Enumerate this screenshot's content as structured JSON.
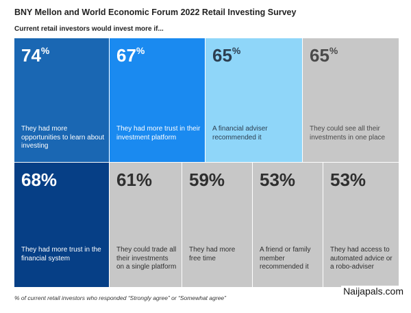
{
  "chart_data": {
    "type": "table",
    "title": "BNY Mellon and World Economic Forum 2022 Retail Investing Survey",
    "subtitle": "Current retail investors would invest more if...",
    "footnote": "% of current retail investors who responded “Strongly agree” or “Somewhat agree”",
    "unit": "%",
    "rows": [
      [
        {
          "value": 74,
          "label": "They had more opportunities to learn about investing",
          "color": "#1a67b3",
          "text_color": "#ffffff"
        },
        {
          "value": 67,
          "label": "They had more trust in their investment platform",
          "color": "#1a8af0",
          "text_color": "#ffffff"
        },
        {
          "value": 65,
          "label": "A financial adviser recommended it",
          "color": "#8fd6f9",
          "text_color": "#2c3e50"
        },
        {
          "value": 65,
          "label": "They could see all their investments in one place",
          "color": "#c7c7c7",
          "text_color": "#4a4a4a"
        }
      ],
      [
        {
          "value": 68,
          "label": "They had more trust in the financial system",
          "color": "#063f86",
          "text_color": "#ffffff"
        },
        {
          "value": 61,
          "label": "They could trade all their investments on a single platform",
          "color": "#c7c7c7",
          "text_color": "#2f2f2f"
        },
        {
          "value": 59,
          "label": "They had more free time",
          "color": "#c7c7c7",
          "text_color": "#2f2f2f"
        },
        {
          "value": 53,
          "label": "A friend or family member recommended it",
          "color": "#c7c7c7",
          "text_color": "#2f2f2f"
        },
        {
          "value": 53,
          "label": "They had access to automated advice or a robo-adviser",
          "color": "#c7c7c7",
          "text_color": "#2f2f2f"
        }
      ]
    ]
  },
  "watermark": "Naijapals.com"
}
